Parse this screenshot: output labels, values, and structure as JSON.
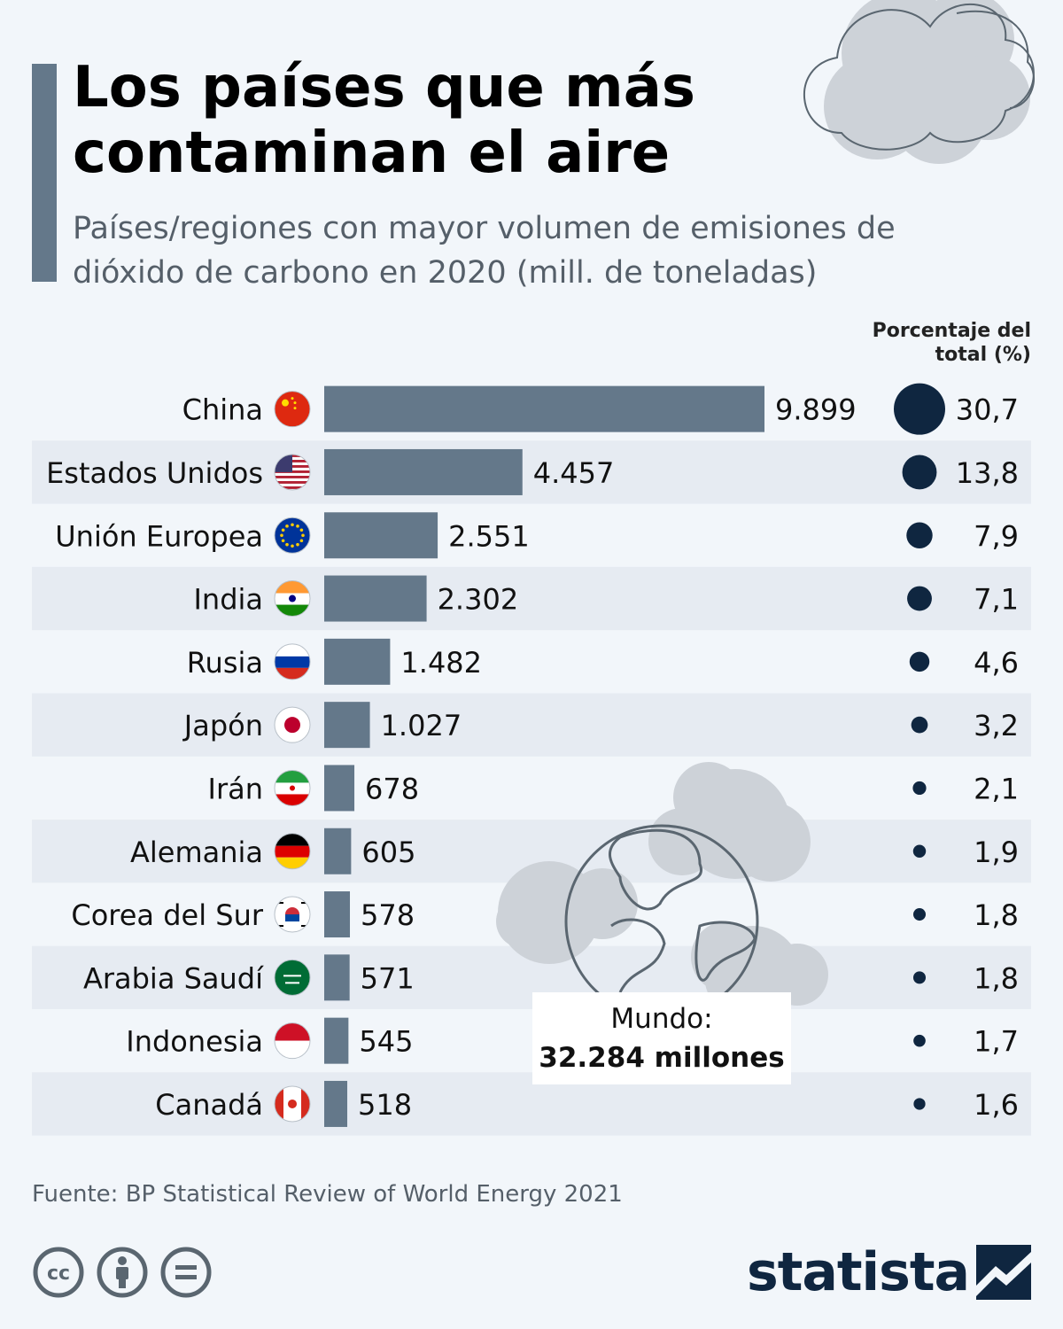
{
  "title": "Los países que más contaminan el aire",
  "subtitle": "Países/regiones con mayor volumen de emisiones de dióxido de carbono en 2020 (mill. de toneladas)",
  "pct_header": "Porcentaje del total (%)",
  "world": {
    "label": "Mundo:",
    "value": "32.284 millones"
  },
  "source": "Fuente: BP Statistical Review of World Energy 2021",
  "logo_text": "statista",
  "license_icons": [
    "cc-icon",
    "attribution-icon",
    "no-derivatives-icon"
  ],
  "colors": {
    "bar": "#64788a",
    "dot": "#0f2640",
    "row_alt": "#e6ebf2",
    "background": "#f2f6fa",
    "cloud_fill": "#cdd2d8",
    "cloud_stroke": "#5a6670"
  },
  "chart_data": {
    "type": "bar",
    "orientation": "horizontal",
    "categories": [
      "China",
      "Estados Unidos",
      "Unión Europea",
      "India",
      "Rusia",
      "Japón",
      "Irán",
      "Alemania",
      "Corea del Sur",
      "Arabia Saudí",
      "Indonesia",
      "Canadá"
    ],
    "flag_icons": [
      "china-flag-icon",
      "usa-flag-icon",
      "eu-flag-icon",
      "india-flag-icon",
      "russia-flag-icon",
      "japan-flag-icon",
      "iran-flag-icon",
      "germany-flag-icon",
      "south-korea-flag-icon",
      "saudi-arabia-flag-icon",
      "indonesia-flag-icon",
      "canada-flag-icon"
    ],
    "series": [
      {
        "values": [
          9899,
          4457,
          2551,
          2302,
          1482,
          1027,
          678,
          605,
          578,
          571,
          545,
          518
        ],
        "labels": [
          "9.899",
          "4.457",
          "2.551",
          "2.302",
          "1.482",
          "1.027",
          "678",
          "605",
          "578",
          "571",
          "545",
          "518"
        ]
      },
      {
        "values": [
          30.7,
          13.8,
          7.9,
          7.1,
          4.6,
          3.2,
          2.1,
          1.9,
          1.8,
          1.8,
          1.7,
          1.6
        ],
        "labels": [
          "30,7",
          "13,8",
          "7,9",
          "7,1",
          "4,6",
          "3,2",
          "2,1",
          "1,9",
          "1,8",
          "1,8",
          "1,7",
          "1,6"
        ],
        "shown_as": "dot-size"
      }
    ],
    "xlim": [
      0,
      9899
    ],
    "grid": false,
    "legend": "none"
  }
}
